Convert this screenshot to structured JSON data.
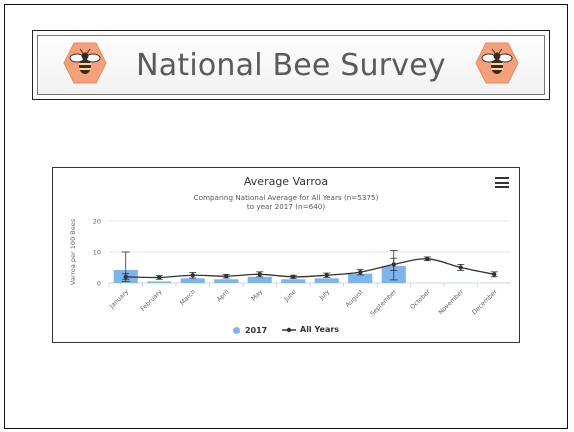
{
  "banner": {
    "title": "National Bee Survey"
  },
  "chart_card": {
    "menu_icon": "hamburger-menu-icon"
  },
  "chart_data": {
    "type": "bar",
    "title": "Average Varroa",
    "subtitle_line1": "Comparing National Average for All Years (n=5375)",
    "subtitle_line2": "to year 2017 (n=640)",
    "xlabel": "",
    "ylabel": "Varroa per 100 Bees",
    "ylim": [
      0,
      20
    ],
    "yticks": [
      0,
      10,
      20
    ],
    "categories": [
      "January",
      "February",
      "March",
      "April",
      "May",
      "June",
      "July",
      "August",
      "September",
      "October",
      "November",
      "December"
    ],
    "series": [
      {
        "name": "2017",
        "type": "bar",
        "color": "#7cb5ec",
        "values": [
          4.2,
          0.5,
          1.5,
          1.2,
          2.0,
          1.2,
          1.5,
          3.0,
          5.5,
          null,
          null,
          null
        ],
        "error_low": [
          0.5,
          null,
          null,
          null,
          null,
          null,
          null,
          null,
          1.0,
          null,
          null,
          null
        ],
        "error_high": [
          10.0,
          null,
          null,
          null,
          null,
          null,
          null,
          null,
          10.5,
          null,
          null,
          null
        ]
      },
      {
        "name": "All Years",
        "type": "line",
        "color": "#333333",
        "values": [
          2.0,
          1.8,
          2.5,
          2.2,
          2.8,
          2.0,
          2.5,
          3.5,
          6.0,
          7.8,
          5.0,
          2.8
        ],
        "error_low": [
          1.2,
          1.2,
          1.6,
          1.6,
          2.0,
          1.5,
          1.8,
          2.6,
          4.0,
          7.2,
          4.0,
          2.0
        ],
        "error_high": [
          3.0,
          2.4,
          3.4,
          2.8,
          3.6,
          2.5,
          3.2,
          4.4,
          8.0,
          8.4,
          6.0,
          3.6
        ]
      }
    ],
    "legend_position": "bottom-center",
    "grid": true
  }
}
